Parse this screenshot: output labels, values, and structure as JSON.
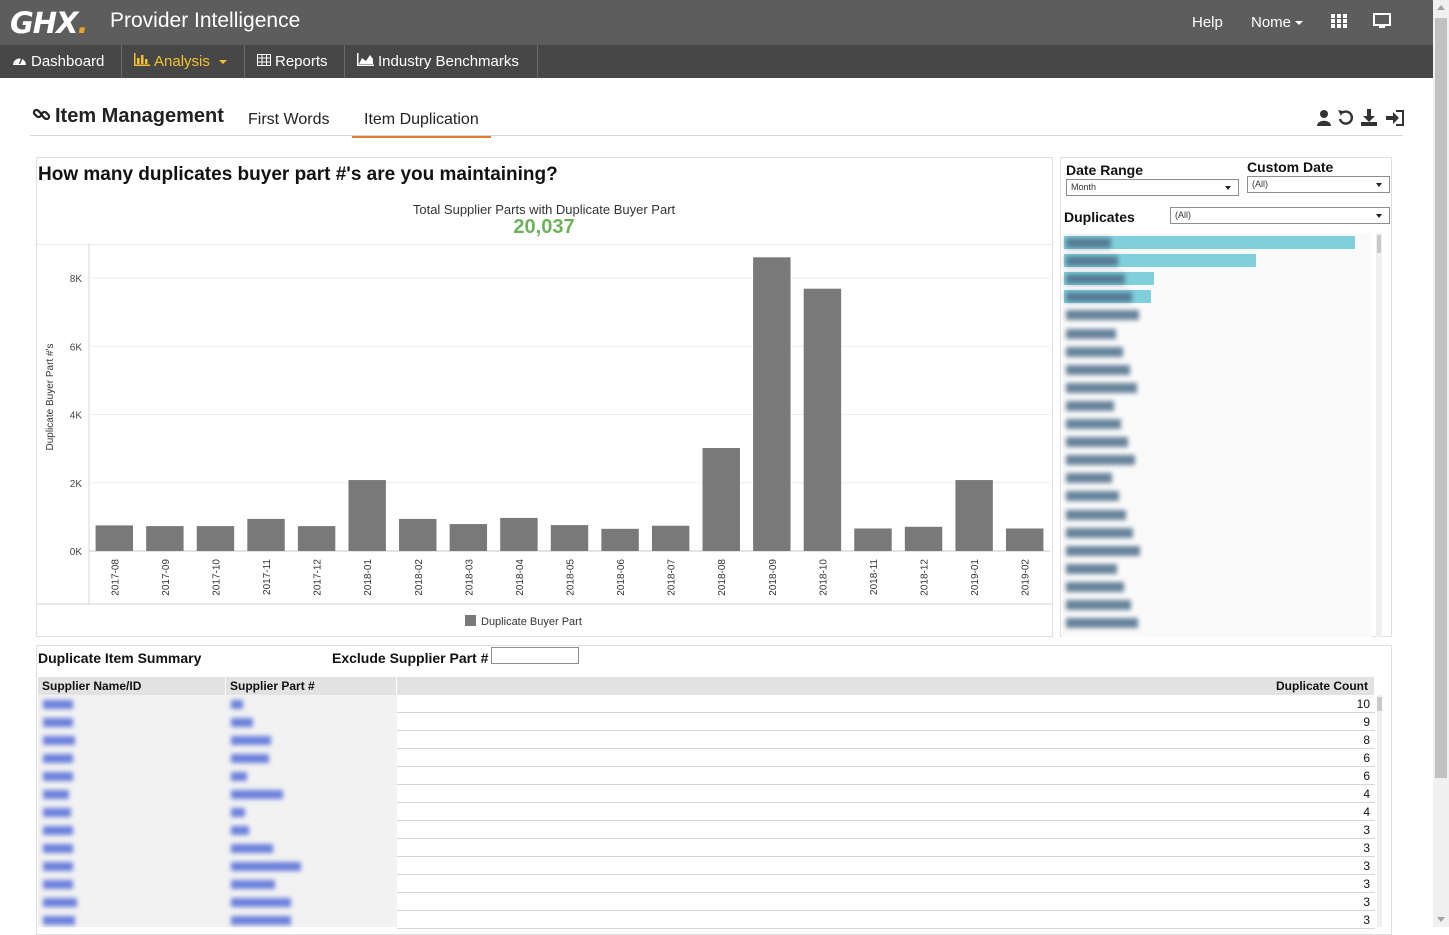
{
  "header": {
    "logo": "GHX",
    "app_title": "Provider Intelligence",
    "help": "Help",
    "user": "Nome",
    "apps_icon": "grid-icon",
    "display_icon": "monitor-icon"
  },
  "nav": {
    "items": [
      {
        "label": "Dashboard",
        "icon": "dashboard-icon"
      },
      {
        "label": "Analysis",
        "icon": "bar-chart-icon",
        "active": true
      },
      {
        "label": "Reports",
        "icon": "table-icon"
      },
      {
        "label": "Industry Benchmarks",
        "icon": "area-chart-icon"
      }
    ]
  },
  "section": {
    "title": "Item Management",
    "tabs": [
      "First Words",
      "Item Duplication"
    ],
    "active_tab": "Item Duplication"
  },
  "colors": {
    "accent": "#e57c2f",
    "nav_active": "#f5c12e",
    "kpi": "#6cb25a",
    "bar": "#797979",
    "dup_bar": "#7fd0dc"
  },
  "chart": {
    "question": "How many duplicates buyer part #'s are you maintaining?",
    "kpi_label": "Total Supplier Parts with Duplicate Buyer Part",
    "kpi_value": "20,037",
    "legend_label": "Duplicate Buyer Part"
  },
  "chart_data": {
    "type": "bar",
    "ylabel": "Duplicate Buyer Part #'s",
    "xlabel": "",
    "ylim": [
      0,
      9000
    ],
    "yticks": [
      0,
      2000,
      4000,
      6000,
      8000
    ],
    "ytick_labels": [
      "0K",
      "2K",
      "4K",
      "6K",
      "8K"
    ],
    "grid": true,
    "legend_position": "bottom",
    "categories": [
      "2017-08",
      "2017-09",
      "2017-10",
      "2017-11",
      "2017-12",
      "2018-01",
      "2018-02",
      "2018-03",
      "2018-04",
      "2018-05",
      "2018-06",
      "2018-07",
      "2018-08",
      "2018-09",
      "2018-10",
      "2018-11",
      "2018-12",
      "2019-01",
      "2019-02"
    ],
    "series": [
      {
        "name": "Duplicate Buyer Part",
        "values": [
          750,
          730,
          730,
          940,
          730,
          2080,
          940,
          790,
          970,
          760,
          650,
          740,
          3020,
          8610,
          7690,
          660,
          710,
          2080,
          660
        ]
      }
    ]
  },
  "filters": {
    "date_range_label": "Date Range",
    "date_range_value": "Month",
    "custom_date_label": "Custom Date",
    "custom_date_value": "(All)",
    "duplicates_label": "Duplicates",
    "duplicates_value": "(All)",
    "duplicate_bar_levels": [
      0.97,
      0.64,
      0.3,
      0.29
    ]
  },
  "table": {
    "title": "Duplicate Item Summary",
    "exclude_label": "Exclude Supplier Part #",
    "exclude_value": "",
    "columns": [
      "Supplier Name/ID",
      "Supplier Part #",
      "Duplicate Count"
    ],
    "counts": [
      "10",
      "9",
      "8",
      "6",
      "6",
      "4",
      "4",
      "3",
      "3",
      "3",
      "3",
      "3",
      "3"
    ]
  }
}
